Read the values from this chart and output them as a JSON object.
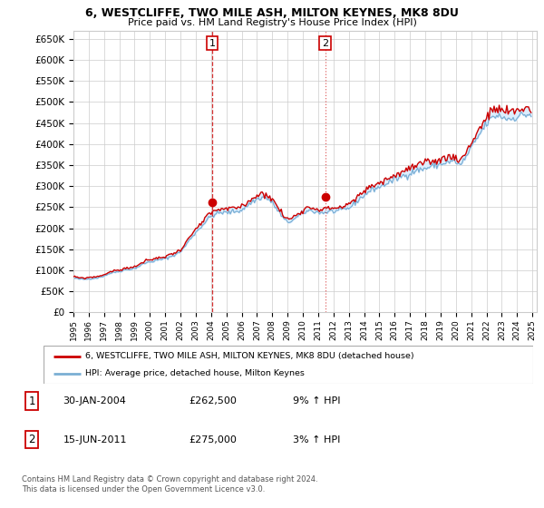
{
  "title": "6, WESTCLIFFE, TWO MILE ASH, MILTON KEYNES, MK8 8DU",
  "subtitle": "Price paid vs. HM Land Registry's House Price Index (HPI)",
  "ylabel_ticks": [
    0,
    50000,
    100000,
    150000,
    200000,
    250000,
    300000,
    350000,
    400000,
    450000,
    500000,
    550000,
    600000,
    650000
  ],
  "ylim": [
    0,
    670000
  ],
  "xlim_start": 1995.0,
  "xlim_end": 2025.3,
  "sale1_x": 2004.08,
  "sale1_y": 262500,
  "sale2_x": 2011.46,
  "sale2_y": 275000,
  "sale1_label": "1",
  "sale2_label": "2",
  "line_color_red": "#cc0000",
  "line_color_blue": "#7bafd4",
  "fill_color": "#ddeeff",
  "grid_color": "#cccccc",
  "background_color": "#ffffff",
  "legend_line1": "6, WESTCLIFFE, TWO MILE ASH, MILTON KEYNES, MK8 8DU (detached house)",
  "legend_line2": "HPI: Average price, detached house, Milton Keynes",
  "table_row1": [
    "1",
    "30-JAN-2004",
    "£262,500",
    "9% ↑ HPI"
  ],
  "table_row2": [
    "2",
    "15-JUN-2011",
    "£275,000",
    "3% ↑ HPI"
  ],
  "footer": "Contains HM Land Registry data © Crown copyright and database right 2024.\nThis data is licensed under the Open Government Licence v3.0."
}
